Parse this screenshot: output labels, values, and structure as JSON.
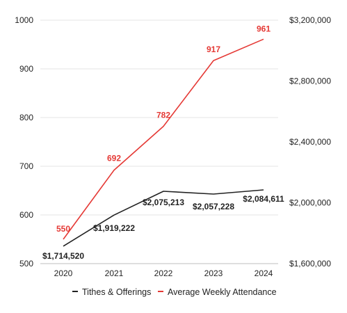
{
  "chart_data": {
    "type": "line",
    "categories": [
      "2020",
      "2021",
      "2022",
      "2023",
      "2024"
    ],
    "left_axis": {
      "min": 500,
      "max": 1000,
      "ticks": [
        "500",
        "600",
        "700",
        "800",
        "900",
        "1000"
      ]
    },
    "right_axis": {
      "min": 1600000,
      "max": 3200000,
      "ticks": [
        "$1,600,000",
        "$2,000,000",
        "$2,400,000",
        "$2,800,000",
        "$3,200,000"
      ]
    },
    "grid": true,
    "legend_position": "bottom",
    "series": [
      {
        "name": "Tithes & Offerings",
        "axis": "right",
        "color": "#222222",
        "values": [
          1714520,
          1919222,
          2075213,
          2057228,
          2084611
        ],
        "labels": [
          "$1,714,520",
          "$1,919,222",
          "$2,075,213",
          "$2,057,228",
          "$2,084,611"
        ]
      },
      {
        "name": "Average Weekly Attendance",
        "axis": "left",
        "color": "#e53935",
        "values": [
          550,
          692,
          782,
          917,
          961
        ],
        "labels": [
          "550",
          "692",
          "782",
          "917",
          "961"
        ]
      }
    ]
  }
}
